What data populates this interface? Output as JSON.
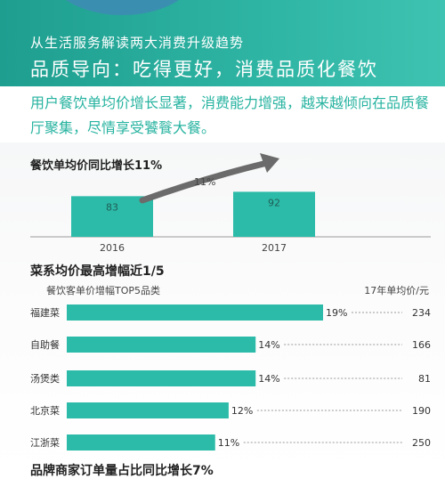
{
  "header": {
    "subtitle": "从生活服务解读两大消费升级趋势",
    "title": "品质导向：吃得更好，消费品质化餐饮"
  },
  "description": "用户餐饮单均价增长显著，消费能力增强，越来越倾向在品质餐厅聚集，尽情享受饕餮大餐。",
  "colors": {
    "teal": "#2cbba8",
    "accent": "#27b3a0",
    "header_bg": "#2aab9b",
    "circle": "#3a8fb0",
    "arrow": "#666666"
  },
  "chart_data": [
    {
      "type": "bar",
      "title": "餐饮单均价同比增长11%",
      "categories": [
        "2016",
        "2017"
      ],
      "values": [
        83,
        92
      ],
      "annotation": "11%",
      "ylim": [
        0,
        100
      ]
    },
    {
      "type": "bar",
      "orientation": "horizontal",
      "title": "菜系均价最高增幅近1/5",
      "caption_left": "餐饮客单价增幅TOP5品类",
      "caption_right": "17年单均价/元",
      "categories": [
        "福建菜",
        "自助餐",
        "汤煲类",
        "北京菜",
        "江浙菜"
      ],
      "growth_labels": [
        "19%",
        "14%",
        "14%",
        "12%",
        "11%"
      ],
      "growth": [
        19,
        14,
        14,
        12,
        11
      ],
      "prices": [
        234,
        166,
        81,
        190,
        250
      ],
      "xlim": [
        0,
        19
      ]
    }
  ],
  "next_section_title": "品牌商家订单量占比同比增长7%"
}
